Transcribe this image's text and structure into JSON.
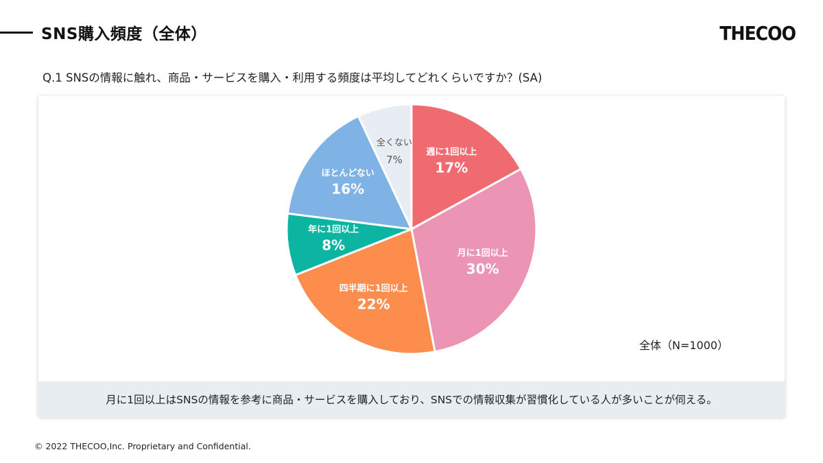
{
  "header": {
    "title": "SNS購入頻度（全体）",
    "logo_text": "THECOO"
  },
  "question": "Q.1 SNSの情報に触れ、商品・サービスを購入・利用する頻度は平均してどれくらいですか？(SA)",
  "sample_label": "全体（N=1000）",
  "summary": "月に1回以上はSNSの情報を参考に商品・サービスを購入しており、SNSでの情報収集が習慣化している人が多いことが伺える。",
  "footer": "© 2022 THECOO,Inc. Proprietary and Confidential.",
  "chart_data": {
    "type": "pie",
    "title": "",
    "slices": [
      {
        "label": "週に1回以上",
        "value": 17,
        "display": "17%",
        "color": "#f06b6f",
        "text_color": "#ffffff"
      },
      {
        "label": "月に1回以上",
        "value": 30,
        "display": "30%",
        "color": "#eb94b4",
        "text_color": "#ffffff"
      },
      {
        "label": "四半期に1回以上",
        "value": 22,
        "display": "22%",
        "color": "#fc8d4c",
        "text_color": "#ffffff"
      },
      {
        "label": "年に1回以上",
        "value": 8,
        "display": "8%",
        "color": "#0cb5a1",
        "text_color": "#ffffff"
      },
      {
        "label": "ほとんどない",
        "value": 16,
        "display": "16%",
        "color": "#7fb3e6",
        "text_color": "#ffffff"
      },
      {
        "label": "全くない",
        "value": 7,
        "display": "7%",
        "color": "#e8edf3",
        "text_color": "#555555"
      }
    ]
  }
}
